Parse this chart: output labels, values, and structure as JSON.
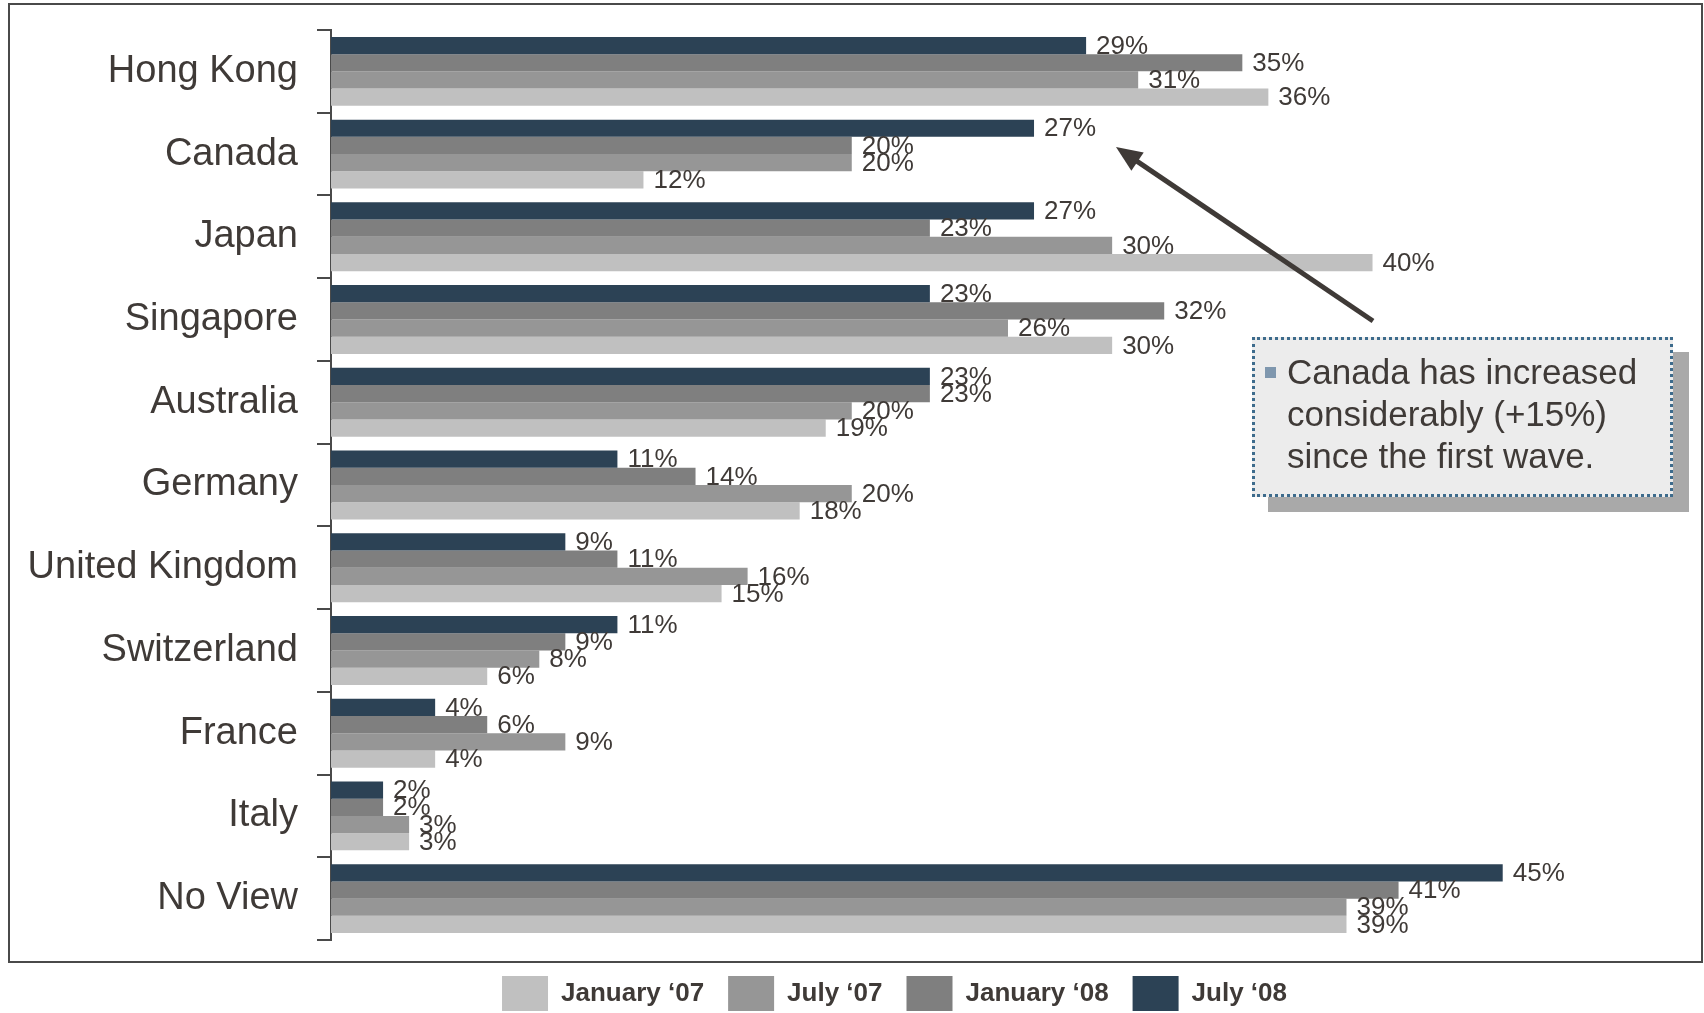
{
  "chart_data": {
    "type": "bar",
    "orientation": "horizontal",
    "categories": [
      "Hong Kong",
      "Canada",
      "Japan",
      "Singapore",
      "Australia",
      "Germany",
      "United Kingdom",
      "Switzerland",
      "France",
      "Italy",
      "No View"
    ],
    "series": [
      {
        "name": "January ‘07",
        "color": "#c0c0c0",
        "values": [
          36,
          12,
          40,
          30,
          19,
          18,
          15,
          6,
          4,
          3,
          39
        ],
        "value_labels": [
          "36%",
          "12%",
          "40%",
          "30%",
          "19%",
          "18%",
          "15%",
          "6%",
          "4%",
          "3%",
          "39%"
        ]
      },
      {
        "name": "July ‘07",
        "color": "#969696",
        "values": [
          31,
          20,
          30,
          26,
          20,
          20,
          16,
          8,
          9,
          3,
          39
        ],
        "value_labels": [
          "31%",
          "20%",
          "30%",
          "26%",
          "20%",
          "20%",
          "16%",
          "8%",
          "9%",
          "3%",
          "39%"
        ]
      },
      {
        "name": "January ‘08",
        "color": "#7f7f7f",
        "values": [
          35,
          20,
          23,
          32,
          23,
          14,
          11,
          9,
          6,
          2,
          41
        ],
        "value_labels": [
          "35%",
          "20%",
          "23%",
          "32%",
          "23%",
          "14%",
          "11%",
          "9%",
          "6%",
          "2%",
          "41%"
        ]
      },
      {
        "name": "July ‘08",
        "color": "#2c4255",
        "values": [
          29,
          27,
          27,
          23,
          23,
          11,
          9,
          11,
          4,
          2,
          45
        ],
        "value_labels": [
          "29%",
          "27%",
          "27%",
          "23%",
          "23%",
          "11%",
          "9%",
          "11%",
          "4%",
          "2%",
          "45%"
        ]
      }
    ],
    "legend": "bottom",
    "annotations": [
      "Canada has increased considerably (+15%) since the first wave."
    ]
  }
}
